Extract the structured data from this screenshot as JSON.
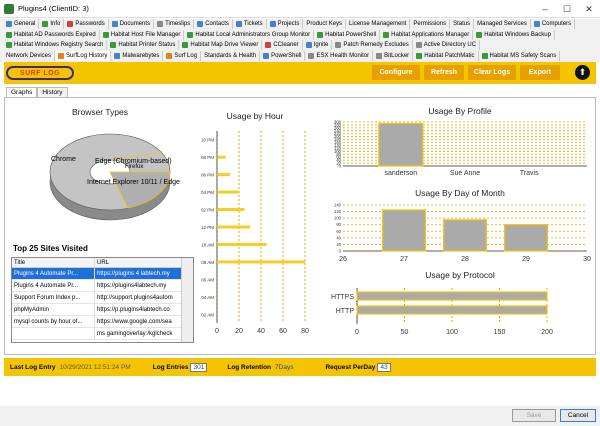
{
  "window": {
    "title": "Plugins4  (ClientID: 3)",
    "minimize": "–",
    "maximize": "☐",
    "close": "✕"
  },
  "tabs_row1": [
    {
      "label": "General",
      "color": "#4a7fd0"
    },
    {
      "label": "Info",
      "color": "#3a9a3a"
    },
    {
      "label": "Passwords",
      "color": "#d04040"
    },
    {
      "label": "Documents",
      "color": "#4a7fd0"
    },
    {
      "label": "Timeslips",
      "color": "#888888"
    },
    {
      "label": "Contacts",
      "color": "#4a7fd0"
    },
    {
      "label": "Tickets",
      "color": "#4a7fd0"
    },
    {
      "label": "Projects",
      "color": "#4a7fd0"
    },
    {
      "label": "Product Keys",
      "color": ""
    },
    {
      "label": "License Management",
      "color": ""
    },
    {
      "label": "Permissions",
      "color": ""
    },
    {
      "label": "Status",
      "color": ""
    },
    {
      "label": "Managed Services",
      "color": ""
    },
    {
      "label": "Computers",
      "color": "#4a7fd0"
    }
  ],
  "tabs_row2": [
    {
      "label": "Habitat AD Passwords Expired",
      "color": "#3a9a3a"
    },
    {
      "label": "Habitat Host File Manager",
      "color": "#3a9a3a"
    },
    {
      "label": "Habitat Local Administrators Group Monitor",
      "color": "#3a9a3a"
    },
    {
      "label": "Habitat PowerShell",
      "color": "#3a9a3a"
    },
    {
      "label": "Habitat Applications Manager",
      "color": "#3a9a3a"
    },
    {
      "label": "Habitat Windows Backup",
      "color": "#3a9a3a"
    }
  ],
  "tabs_row3": [
    {
      "label": "Habitat Windows Registry Search",
      "color": "#3a9a3a"
    },
    {
      "label": "Habitat Printer Status",
      "color": "#3a9a3a"
    },
    {
      "label": "Habitat Map Drive Viewer",
      "color": "#3a9a3a"
    },
    {
      "label": "CCleaner",
      "color": "#d04040"
    },
    {
      "label": "Ignite",
      "color": "#4a7fd0"
    },
    {
      "label": "Patch Remedy Excludes",
      "color": "#888888"
    },
    {
      "label": "Active Directory UC",
      "color": "#888888"
    }
  ],
  "tabs_row4": [
    {
      "label": "Network Devices",
      "color": ""
    },
    {
      "label": "SurfLog History",
      "color": "#e08020",
      "active": true
    },
    {
      "label": "Malwarebytes",
      "color": "#4a7fd0"
    },
    {
      "label": "Surf Log",
      "color": "#e08020"
    },
    {
      "label": "Standards & Health",
      "color": ""
    },
    {
      "label": "PowerShell",
      "color": "#4a7fd0"
    },
    {
      "label": "ESX Health Monitor",
      "color": "#888888"
    },
    {
      "label": "BitLocker",
      "color": "#888888"
    },
    {
      "label": "Habitat PatchMatic",
      "color": "#3a9a3a"
    },
    {
      "label": "Habitat MS Safety Scans",
      "color": "#3a9a3a"
    }
  ],
  "toolbar": {
    "logo": "SURF LOG",
    "configure": "Configure",
    "refresh": "Refresh",
    "clear_logs": "Clear Logs",
    "export": "Export",
    "up": "⬆"
  },
  "subtabs": {
    "graphs": "Graphs",
    "history": "History"
  },
  "browser_chart": {
    "title": "Browser Types",
    "labels": [
      "Chrome",
      "Edge (Chromium-based)",
      "Firefox",
      "Internet Explorer 10/11 / Edge"
    ]
  },
  "sites": {
    "title": "Top 25 Sites Visited",
    "col_title": "Title",
    "col_url": "URL",
    "rows": [
      {
        "title": "Plugins 4 Automate   Pr...",
        "url": "https://plugins 4 labtech.my"
      },
      {
        "title": "Plugins 4 Automate   Pr...",
        "url": "https://plugins4labtech.my"
      },
      {
        "title": "Support Forum   Index p...",
        "url": "http://support.plugins4autom"
      },
      {
        "title": "phpMyAdmin",
        "url": "https://p.plugins4labtech.co"
      },
      {
        "title": "mysql counts by hour of...",
        "url": "https://www.google.com/sea"
      },
      {
        "title": "",
        "url": "ms gamingoverlay:/kglcheck"
      }
    ]
  },
  "status": {
    "last_log_label": "Last Log Entry",
    "last_log_value": "10/29/2021 12:51:24 PM",
    "entries_label": "Log Entries",
    "entries_value": "301",
    "retention_label": "Log Retention",
    "retention_value": "7Days",
    "perday_label": "Request PerDay",
    "perday_value": "43"
  },
  "buttons": {
    "save": "Save",
    "cancel": "Cancel"
  },
  "chart_data": [
    {
      "type": "bar",
      "title": "Usage by Hour",
      "orientation": "horizontal",
      "categories": [
        "02 AM",
        "04 AM",
        "06 AM",
        "08 AM",
        "10 AM",
        "12 PM",
        "02 PM",
        "04 PM",
        "06 PM",
        "08 PM",
        "10 PM"
      ],
      "xticks": [
        "0",
        "20",
        "40",
        "60",
        "80"
      ],
      "values": [
        0,
        0,
        0,
        80,
        45,
        30,
        25,
        20,
        12,
        8,
        0
      ],
      "xlim": [
        0,
        80
      ]
    },
    {
      "type": "bar",
      "title": "Usage By Profile",
      "categories": [
        "sanderson",
        "Sue Anne",
        "Travis"
      ],
      "values": [
        290,
        0,
        0
      ],
      "yticks": [
        "300",
        "280",
        "260",
        "240",
        "220",
        "200",
        "180",
        "160",
        "140",
        "120",
        "100",
        "80",
        "60",
        "40",
        "20",
        "0"
      ],
      "ylim": [
        0,
        300
      ]
    },
    {
      "type": "bar",
      "title": "Usage By Day of Month",
      "x": [
        27,
        28,
        29
      ],
      "values": [
        125,
        95,
        80
      ],
      "xticks": [
        "26",
        "27",
        "28",
        "29",
        "30"
      ],
      "yticks": [
        "140",
        "120",
        "100",
        "80",
        "60",
        "40",
        "20",
        "0"
      ],
      "ylim": [
        0,
        140
      ],
      "xlim": [
        26,
        30
      ]
    },
    {
      "type": "bar",
      "orientation": "horizontal",
      "title": "Usage by Protocol",
      "categories": [
        "HTTPS",
        "HTTP"
      ],
      "values": [
        200,
        200
      ],
      "xticks": [
        "0",
        "50",
        "100",
        "150",
        "200"
      ],
      "xlim": [
        0,
        200
      ]
    }
  ]
}
